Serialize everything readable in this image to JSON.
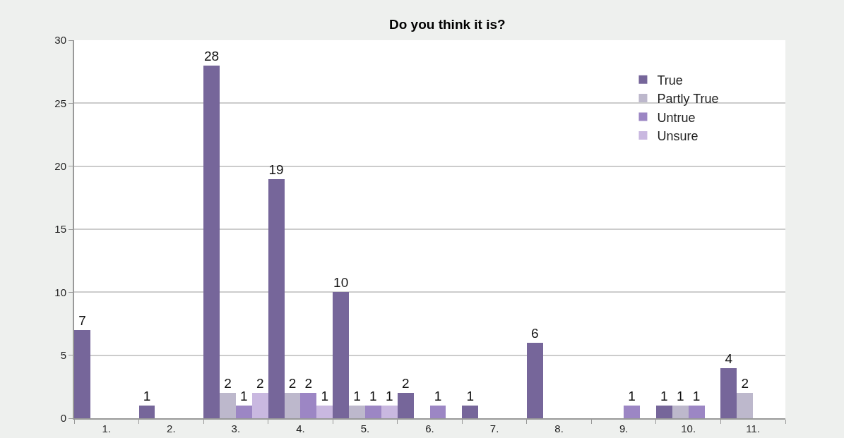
{
  "chart_data": {
    "type": "bar",
    "title": "Do you think it is?",
    "categories": [
      "1.",
      "2.",
      "3.",
      "4.",
      "5.",
      "6.",
      "7.",
      "8.",
      "9.",
      "10.",
      "11."
    ],
    "series": [
      {
        "name": "True",
        "color": "#76669a",
        "values": [
          7,
          1,
          28,
          19,
          10,
          2,
          1,
          6,
          0,
          1,
          4
        ],
        "value_labels": [
          "7",
          "1",
          "28",
          "19",
          "10",
          "2",
          "1",
          "6",
          null,
          "1",
          "4"
        ]
      },
      {
        "name": "Partly True",
        "color": "#bdb8cc",
        "values": [
          0,
          0,
          2,
          2,
          1,
          0,
          0,
          0,
          0,
          1,
          2
        ],
        "value_labels": [
          null,
          null,
          "2",
          "2",
          "1",
          null,
          null,
          null,
          null,
          "1",
          "2"
        ]
      },
      {
        "name": "Untrue",
        "color": "#9c86c4",
        "values": [
          0,
          0,
          1,
          2,
          1,
          1,
          0,
          0,
          1,
          1,
          0
        ],
        "value_labels": [
          null,
          null,
          "1",
          "2",
          "1",
          "1",
          null,
          null,
          "1",
          "1",
          null
        ]
      },
      {
        "name": "Unsure",
        "color": "#c9b8e0",
        "values": [
          0,
          0,
          2,
          1,
          1,
          0,
          0,
          0,
          0,
          0,
          0
        ],
        "value_labels": [
          null,
          null,
          "2",
          "1",
          "1",
          null,
          null,
          null,
          null,
          null,
          null
        ]
      }
    ],
    "ylim": [
      0,
      30
    ],
    "yticks": [
      0,
      5,
      10,
      15,
      20,
      25,
      30
    ],
    "grid": "y",
    "legend": "top right"
  }
}
